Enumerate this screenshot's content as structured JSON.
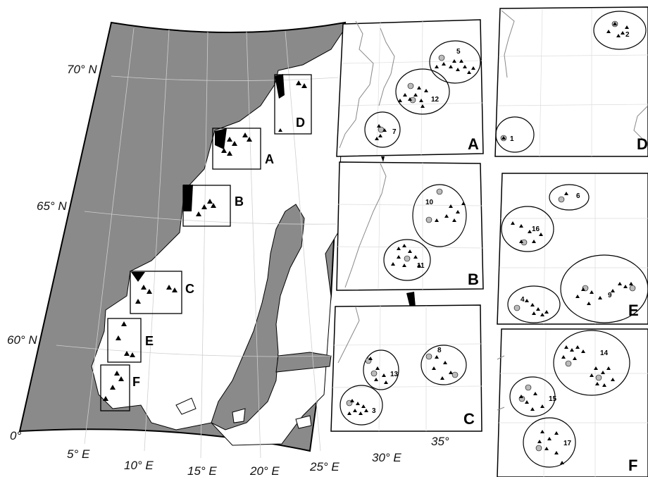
{
  "lat_labels": [
    "70° N",
    "65° N",
    "60° N"
  ],
  "lon_labels": [
    "0°",
    "5° E",
    "10° E",
    "15° E",
    "20° E",
    "25° E",
    "30° E",
    "35°"
  ],
  "region_boxes": [
    "A",
    "B",
    "C",
    "D",
    "E",
    "F"
  ],
  "panels": {
    "A": {
      "letter": "A",
      "clusters": [
        "5",
        "12",
        "7"
      ]
    },
    "B": {
      "letter": "B",
      "clusters": [
        "10",
        "11"
      ]
    },
    "C": {
      "letter": "C",
      "clusters": [
        "13",
        "3",
        "8"
      ]
    },
    "D": {
      "letter": "D",
      "clusters": [
        "2",
        "1"
      ]
    },
    "E": {
      "letter": "E",
      "clusters": [
        "6",
        "16",
        "9",
        "4"
      ]
    },
    "F": {
      "letter": "F",
      "clusters": [
        "14",
        "15",
        "17"
      ]
    }
  },
  "colors": {
    "sea": "#8a8a8a",
    "land": "#ffffff",
    "coast": "#000000",
    "graticule": "#cfcfcf"
  }
}
